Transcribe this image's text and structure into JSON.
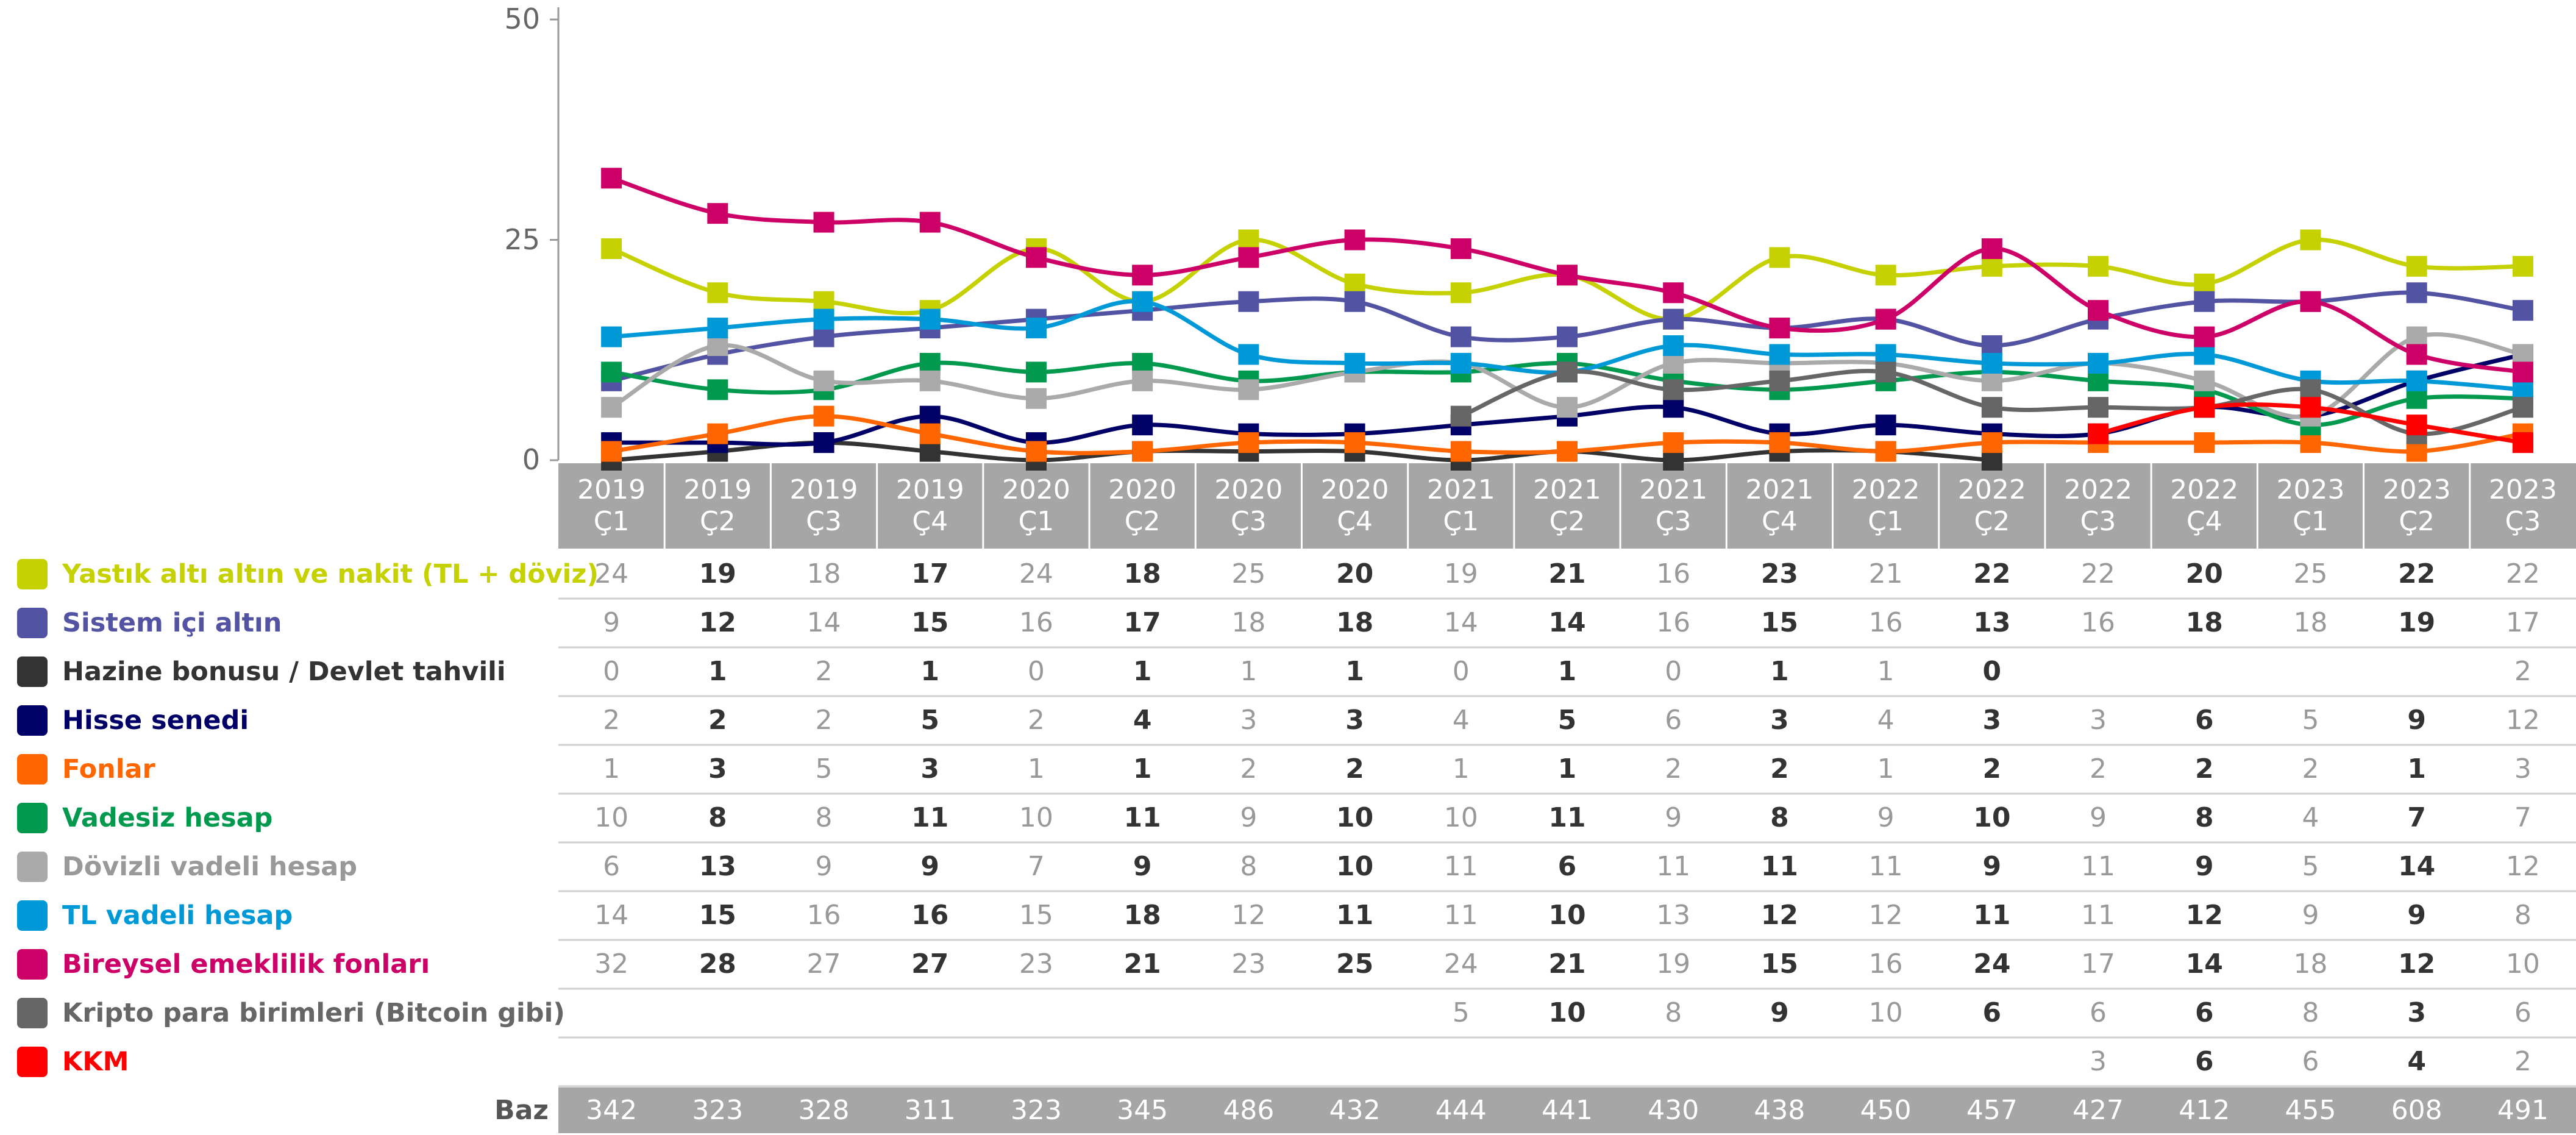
{
  "chart_data": {
    "type": "line",
    "categories": [
      "2019\nÇ1",
      "2019\nÇ2",
      "2019\nÇ3",
      "2019\nÇ4",
      "2020\nÇ1",
      "2020\nÇ2",
      "2020\nÇ3",
      "2020\nÇ4",
      "2021\nÇ1",
      "2021\nÇ2",
      "2021\nÇ3",
      "2021\nÇ4",
      "2022\nÇ1",
      "2022\nÇ2",
      "2022\nÇ3",
      "2022\nÇ4",
      "2023\nÇ1",
      "2023\nÇ2",
      "2023\nÇ3"
    ],
    "ylim": [
      0,
      50
    ],
    "yticks": [
      0,
      25,
      50
    ],
    "series": [
      {
        "name": "Yastık altı altın ve nakit (TL + döviz)",
        "color": "#c5d100",
        "values": [
          24,
          19,
          18,
          17,
          24,
          18,
          25,
          20,
          19,
          21,
          16,
          23,
          21,
          22,
          22,
          20,
          25,
          22,
          22
        ]
      },
      {
        "name": "Sistem içi altın",
        "color": "#5353a3",
        "values": [
          9,
          12,
          14,
          15,
          16,
          17,
          18,
          18,
          14,
          14,
          16,
          15,
          16,
          13,
          16,
          18,
          18,
          19,
          17
        ]
      },
      {
        "name": "Hazine bonusu / Devlet tahvili",
        "color": "#333333",
        "values": [
          0,
          1,
          2,
          1,
          0,
          1,
          1,
          1,
          0,
          1,
          0,
          1,
          1,
          0,
          null,
          null,
          null,
          null,
          2
        ]
      },
      {
        "name": "Hisse senedi",
        "color": "#000066",
        "values": [
          2,
          2,
          2,
          5,
          2,
          4,
          3,
          3,
          4,
          5,
          6,
          3,
          4,
          3,
          3,
          6,
          5,
          9,
          12
        ]
      },
      {
        "name": "Fonlar",
        "color": "#ff6600",
        "values": [
          1,
          3,
          5,
          3,
          1,
          1,
          2,
          2,
          1,
          1,
          2,
          2,
          1,
          2,
          2,
          2,
          2,
          1,
          3
        ]
      },
      {
        "name": "Vadesiz hesap",
        "color": "#00994d",
        "values": [
          10,
          8,
          8,
          11,
          10,
          11,
          9,
          10,
          10,
          11,
          9,
          8,
          9,
          10,
          9,
          8,
          4,
          7,
          7
        ]
      },
      {
        "name": "Dövizli vadeli hesap",
        "color": "#aaaaaa",
        "values": [
          6,
          13,
          9,
          9,
          7,
          9,
          8,
          10,
          11,
          6,
          11,
          11,
          11,
          9,
          11,
          9,
          5,
          14,
          12
        ]
      },
      {
        "name": "TL vadeli hesap",
        "color": "#0099d8",
        "values": [
          14,
          15,
          16,
          16,
          15,
          18,
          12,
          11,
          11,
          10,
          13,
          12,
          12,
          11,
          11,
          12,
          9,
          9,
          8
        ]
      },
      {
        "name": "Bireysel emeklilik fonları",
        "color": "#cc0066",
        "values": [
          32,
          28,
          27,
          27,
          23,
          21,
          23,
          25,
          24,
          21,
          19,
          15,
          16,
          24,
          17,
          14,
          18,
          12,
          10
        ]
      },
      {
        "name": "Kripto para birimleri (Bitcoin gibi)",
        "color": "#666666",
        "values": [
          null,
          null,
          null,
          null,
          null,
          null,
          null,
          null,
          5,
          10,
          8,
          9,
          10,
          6,
          6,
          6,
          8,
          3,
          6
        ]
      },
      {
        "name": "KKM",
        "color": "#ff0000",
        "values": [
          null,
          null,
          null,
          null,
          null,
          null,
          null,
          null,
          null,
          null,
          null,
          null,
          null,
          null,
          3,
          6,
          6,
          4,
          2
        ]
      }
    ],
    "base": {
      "label": "Baz",
      "values": [
        342,
        323,
        328,
        311,
        323,
        345,
        486,
        432,
        444,
        441,
        430,
        438,
        450,
        457,
        427,
        412,
        455,
        608,
        491
      ]
    }
  }
}
